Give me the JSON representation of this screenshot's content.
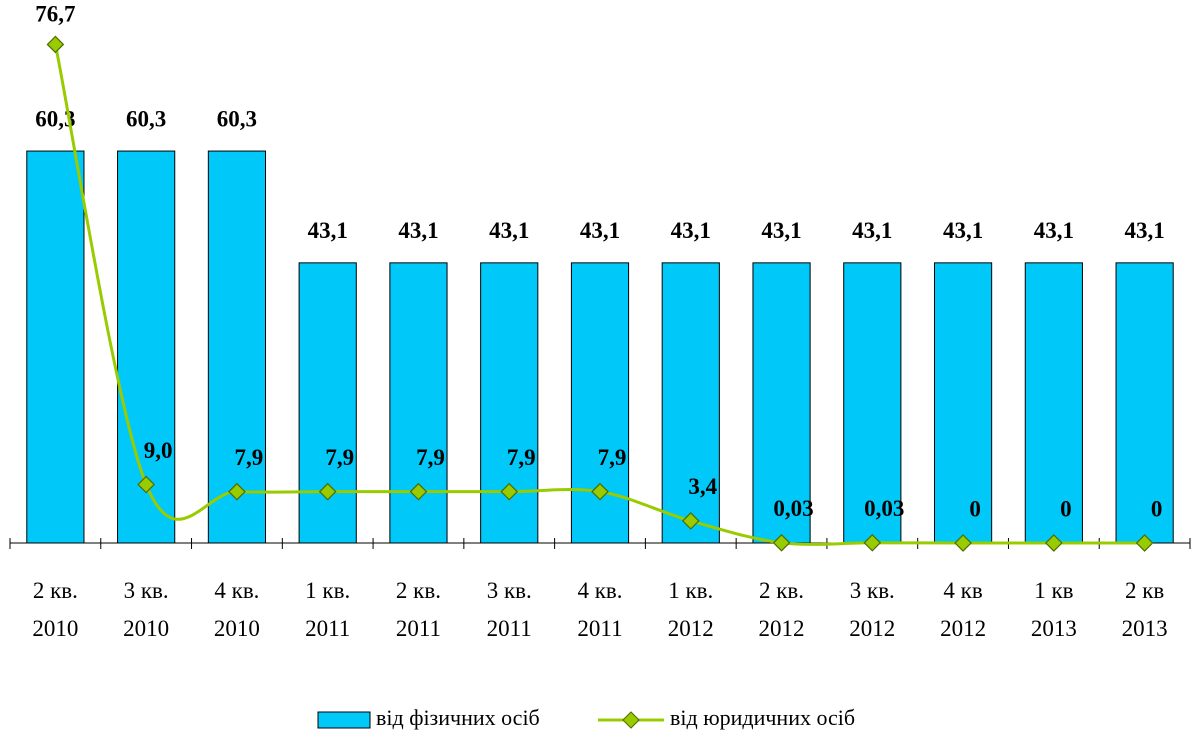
{
  "chart_data": {
    "type": "bar",
    "categories": [
      "2 кв. 2010",
      "3 кв. 2010",
      "4 кв. 2010",
      "1 кв. 2011",
      "2 кв. 2011",
      "3 кв. 2011",
      "4 кв. 2011",
      "1 кв. 2012",
      "2 кв. 2012",
      "3 кв. 2012",
      "4 кв 2012",
      "1 кв 2013",
      "2 кв 2013"
    ],
    "ylim": [
      0,
      80
    ],
    "series": [
      {
        "name": "від фізичних осіб",
        "type": "bar",
        "color": "#00c8f8",
        "values": [
          60.3,
          60.3,
          60.3,
          43.1,
          43.1,
          43.1,
          43.1,
          43.1,
          43.1,
          43.1,
          43.1,
          43.1,
          43.1
        ],
        "value_labels": [
          "60,3",
          "60,3",
          "60,3",
          "43,1",
          "43,1",
          "43,1",
          "43,1",
          "43,1",
          "43,1",
          "43,1",
          "43,1",
          "43,1",
          "43,1"
        ]
      },
      {
        "name": "від юридичних осіб",
        "type": "line",
        "color": "#99cc00",
        "values": [
          76.7,
          9.0,
          7.9,
          7.9,
          7.9,
          7.9,
          7.9,
          3.4,
          0.03,
          0.03,
          0,
          0,
          0
        ],
        "value_labels": [
          "76,7",
          "9,0",
          "7,9",
          "7,9",
          "7,9",
          "7,9",
          "7,9",
          "3,4",
          "0,03",
          "0,03",
          "0",
          "0",
          "0"
        ]
      }
    ]
  }
}
